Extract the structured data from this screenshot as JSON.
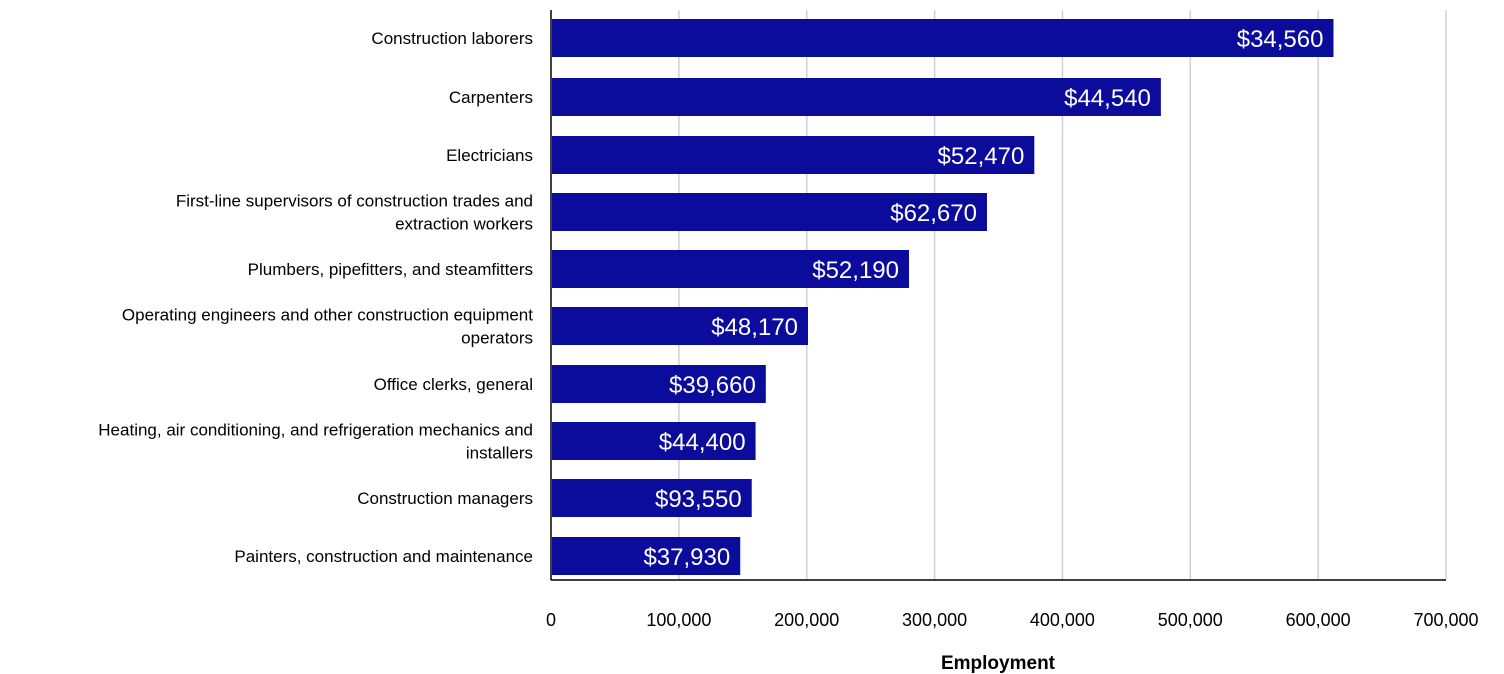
{
  "chart_data": {
    "type": "bar",
    "orientation": "horizontal",
    "categories": [
      "Construction laborers",
      "Carpenters",
      "Electricians",
      "First-line supervisors of construction trades and extraction workers",
      "Plumbers, pipefitters, and steamfitters",
      "Operating engineers and other construction equipment operators",
      "Office clerks, general",
      "Heating, air conditioning, and refrigeration mechanics and installers",
      "Construction managers",
      "Painters, construction and maintenance"
    ],
    "category_lines": [
      [
        "Construction laborers"
      ],
      [
        "Carpenters"
      ],
      [
        "Electricians"
      ],
      [
        "First-line supervisors of construction trades and",
        "extraction workers"
      ],
      [
        "Plumbers, pipefitters, and steamfitters"
      ],
      [
        "Operating engineers and other construction equipment",
        "operators"
      ],
      [
        "Office clerks, general"
      ],
      [
        "Heating, air conditioning, and refrigeration mechanics and",
        "installers"
      ],
      [
        "Construction managers"
      ],
      [
        "Painters, construction and maintenance"
      ]
    ],
    "values": [
      612000,
      477000,
      378000,
      341000,
      280000,
      201000,
      168000,
      160000,
      157000,
      148000
    ],
    "data_labels": [
      "$34,560",
      "$44,540",
      "$52,470",
      "$62,670",
      "$52,190",
      "$48,170",
      "$39,660",
      "$44,400",
      "$93,550",
      "$37,930"
    ],
    "title": "",
    "xlabel": "Employment",
    "ylabel": "",
    "xlim": [
      0,
      700000
    ],
    "ticks": [
      0,
      100000,
      200000,
      300000,
      400000,
      500000,
      600000,
      700000
    ],
    "tick_labels": [
      "0",
      "100,000",
      "200,000",
      "300,000",
      "400,000",
      "500,000",
      "600,000",
      "700,000"
    ],
    "grid": "vertical",
    "legend": "none",
    "colors": {
      "bar": "#0c0c9c",
      "grid": "#d0d0d0",
      "axis": "#000000",
      "bar_label": "#ffffff"
    }
  }
}
